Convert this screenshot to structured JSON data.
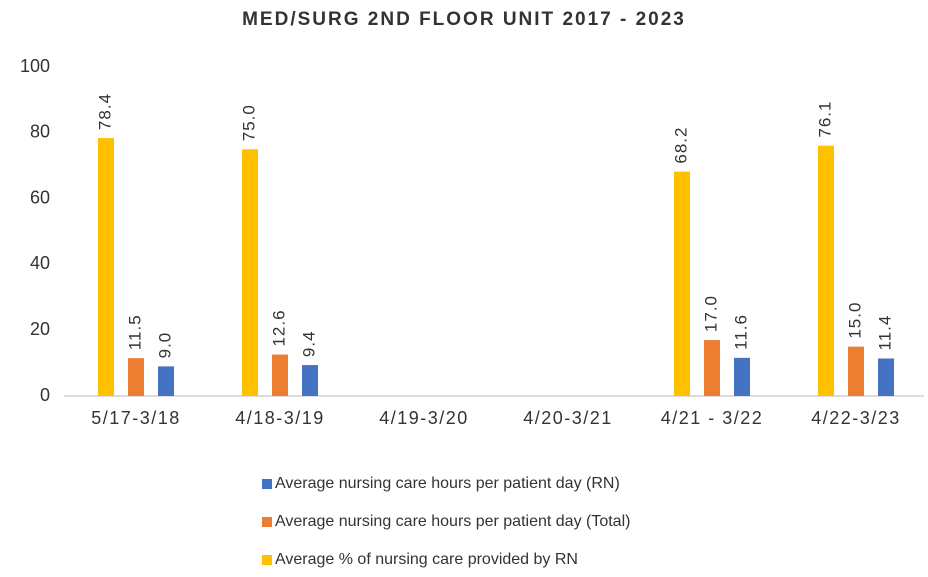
{
  "chart_data": {
    "type": "bar",
    "title": "MED/SURG 2ND FLOOR UNIT 2017 - 2023",
    "categories": [
      "5/17-3/18",
      "4/18-3/19",
      "4/19-3/20",
      "4/20-3/21",
      "4/21 - 3/22",
      "4/22-3/23"
    ],
    "series": [
      {
        "name": "Average % of nursing care provided by RN",
        "color": "#ffc000",
        "values": [
          78.4,
          75.0,
          null,
          null,
          68.2,
          76.1
        ],
        "value_labels": [
          "78.4",
          "75.0",
          null,
          null,
          "68.2",
          "76.1"
        ]
      },
      {
        "name": "Average nursing care hours per patient day (Total)",
        "color": "#ed7d31",
        "values": [
          11.5,
          12.6,
          null,
          null,
          17.0,
          15.0
        ],
        "value_labels": [
          "11.5",
          "12.6",
          null,
          null,
          "17.0",
          "15.0"
        ]
      },
      {
        "name": "Average nursing care hours per patient day (RN)",
        "color": "#4472c4",
        "values": [
          9.0,
          9.4,
          null,
          null,
          11.6,
          11.4
        ],
        "value_labels": [
          "9.0",
          "9.4",
          null,
          null,
          "11.6",
          "11.4"
        ]
      }
    ],
    "ylim": [
      0,
      100
    ],
    "yticks": [
      0,
      20,
      40,
      60,
      80,
      100
    ],
    "grid": false
  }
}
